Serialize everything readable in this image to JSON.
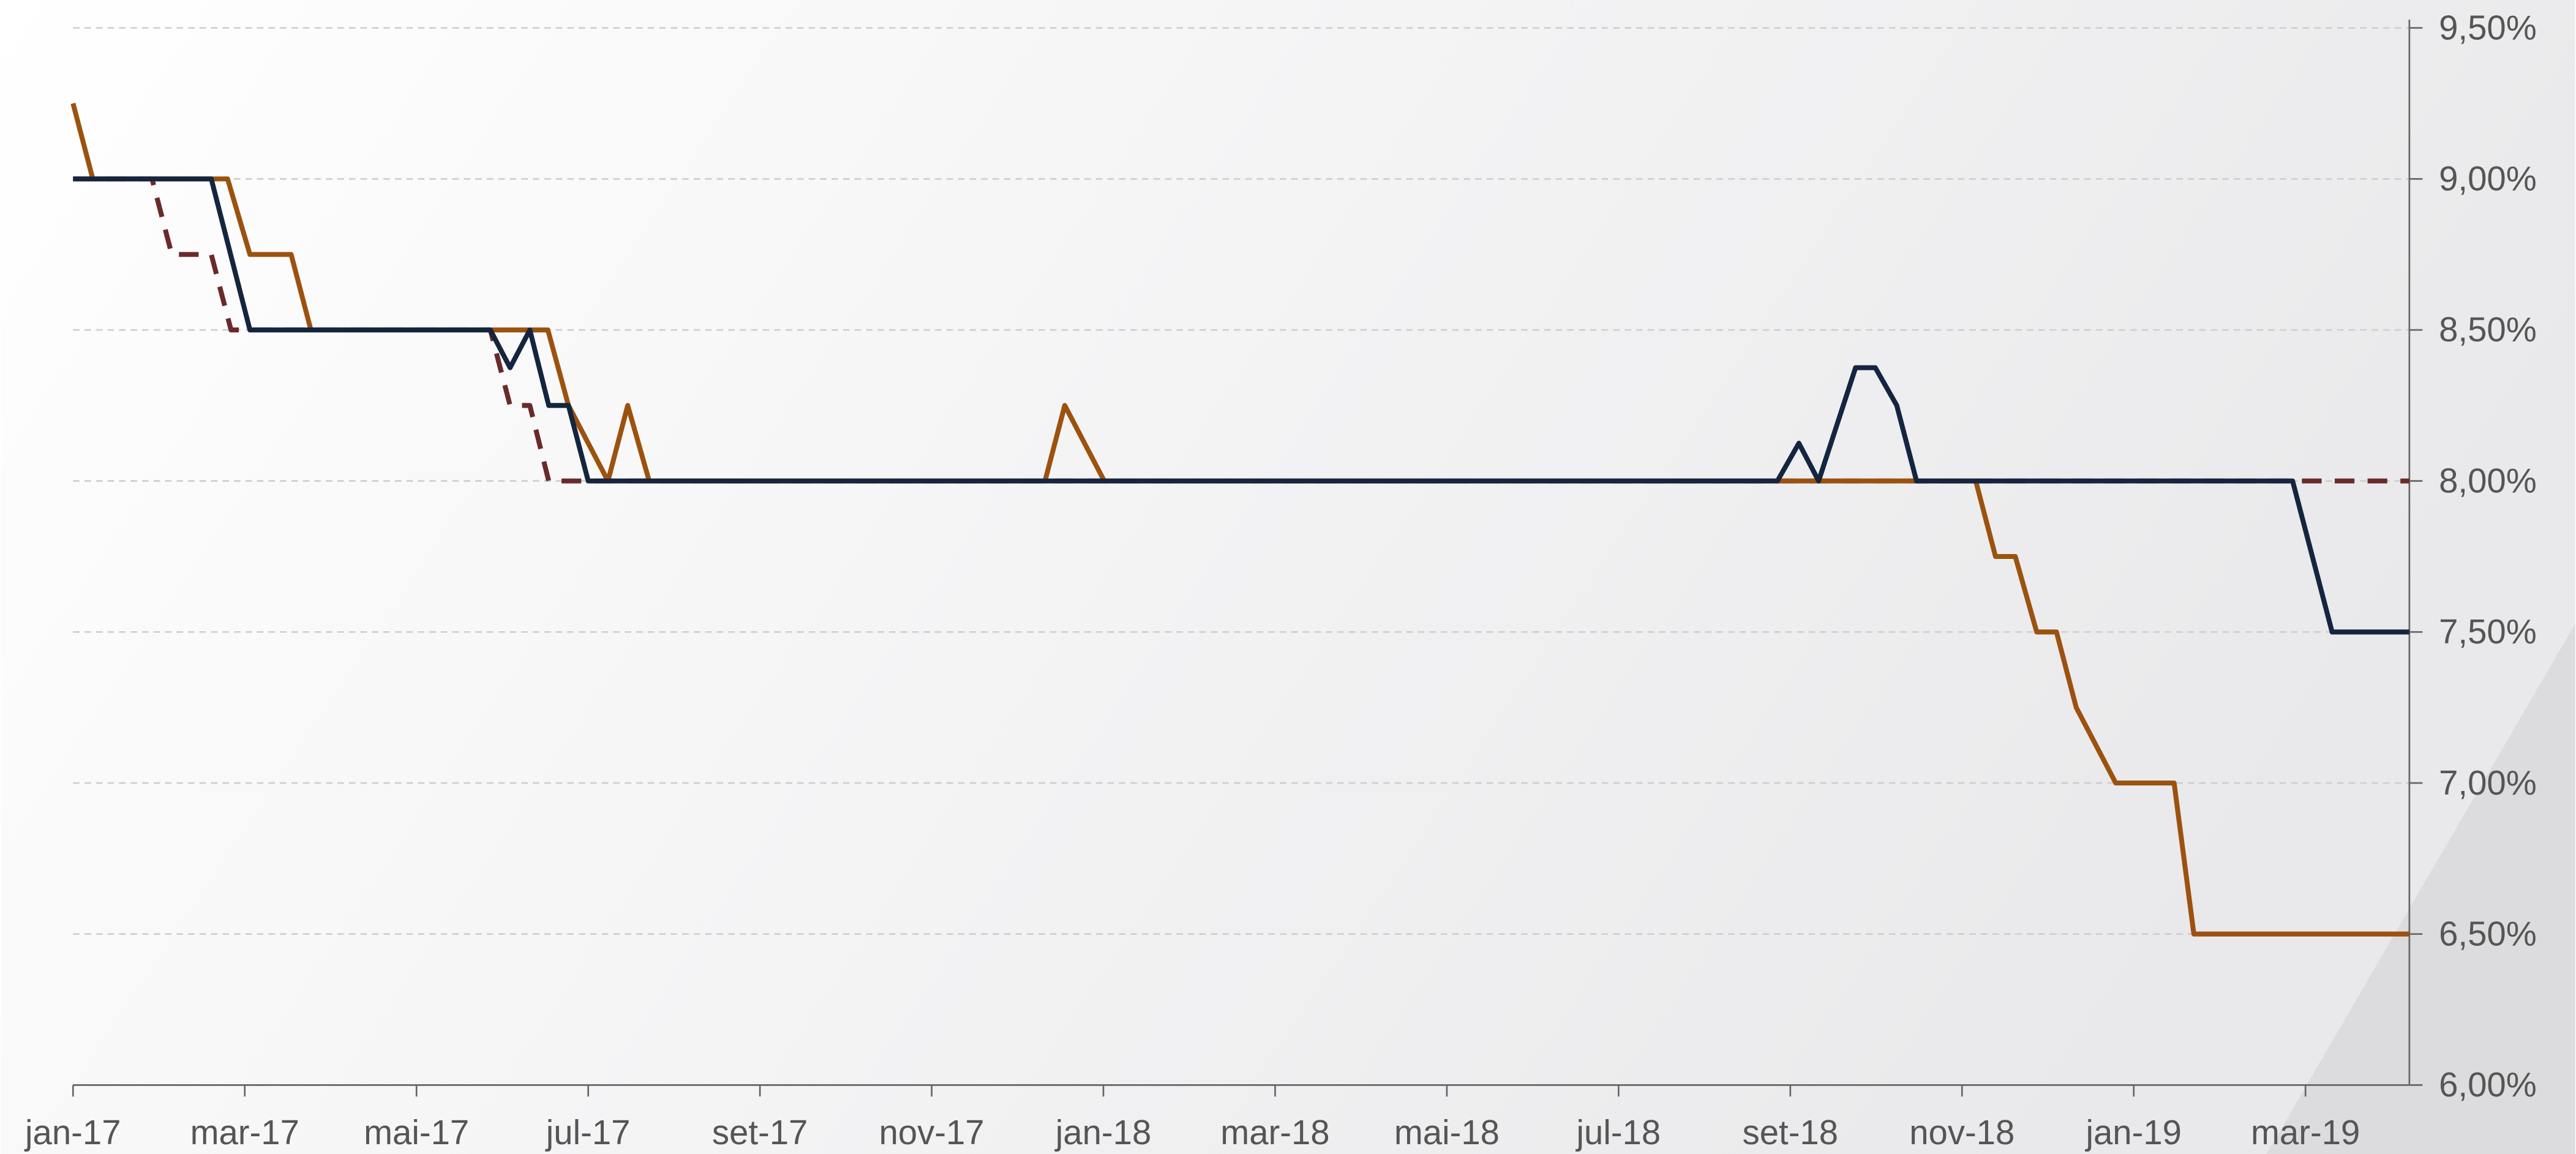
{
  "chart_data": {
    "type": "line",
    "xlim": [
      0,
      27.21
    ],
    "xticks": [
      {
        "value": 0,
        "label": "jan-17"
      },
      {
        "value": 2,
        "label": "mar-17"
      },
      {
        "value": 4,
        "label": "mai-17"
      },
      {
        "value": 6,
        "label": "jul-17"
      },
      {
        "value": 8,
        "label": "set-17"
      },
      {
        "value": 10,
        "label": "nov-17"
      },
      {
        "value": 12,
        "label": "jan-18"
      },
      {
        "value": 14,
        "label": "mar-18"
      },
      {
        "value": 16,
        "label": "mai-18"
      },
      {
        "value": 18,
        "label": "jul-18"
      },
      {
        "value": 20,
        "label": "set-18"
      },
      {
        "value": 22,
        "label": "nov-18"
      },
      {
        "value": 24,
        "label": "jan-19"
      },
      {
        "value": 26,
        "label": "mar-19"
      }
    ],
    "ylim": [
      6,
      9.5
    ],
    "yticks": [
      {
        "value": 6,
        "label": "6,00%"
      },
      {
        "value": 6.5,
        "label": "6,50%"
      },
      {
        "value": 7,
        "label": "7,00%"
      },
      {
        "value": 7.5,
        "label": "7,50%"
      },
      {
        "value": 8,
        "label": "8,00%"
      },
      {
        "value": 8.5,
        "label": "8,50%"
      },
      {
        "value": 9,
        "label": "9,00%"
      },
      {
        "value": 9.5,
        "label": "9,50%"
      }
    ],
    "grid": true,
    "series": [
      {
        "color": "#6b2a2a",
        "dashed": true,
        "x": [
          0,
          0.92,
          1.15,
          1.61,
          1.84,
          4.86,
          5.09,
          5.32,
          5.54,
          27.21
        ],
        "values": [
          9.0,
          9.0,
          8.75,
          8.75,
          8.5,
          8.5,
          8.25,
          8.25,
          8.0,
          8.0
        ]
      },
      {
        "color": "#9c520f",
        "x": [
          0,
          0.23,
          1.8,
          2.06,
          2.54,
          2.77,
          5.53,
          5.77,
          6.23,
          6.46,
          6.71,
          11.32,
          11.55,
          12.01,
          22.16,
          22.39,
          22.62,
          22.87,
          23.1,
          23.33,
          23.79,
          24.47,
          24.7,
          27.21
        ],
        "values": [
          9.25,
          9.0,
          9.0,
          8.75,
          8.75,
          8.5,
          8.5,
          8.25,
          8.0,
          8.25,
          8.0,
          8.0,
          8.25,
          8.0,
          8.0,
          7.75,
          7.75,
          7.5,
          7.5,
          7.25,
          7.0,
          7.0,
          6.5,
          6.5
        ]
      },
      {
        "color": "#14253f",
        "x": [
          0,
          1.61,
          2.06,
          4.86,
          5.09,
          5.32,
          5.54,
          5.77,
          6.0,
          19.85,
          20.1,
          20.33,
          20.76,
          20.99,
          21.24,
          21.47,
          25.85,
          26.31,
          27.21
        ],
        "values": [
          9.0,
          9.0,
          8.5,
          8.5,
          8.375,
          8.5,
          8.25,
          8.25,
          8.0,
          8.0,
          8.125,
          8.0,
          8.375,
          8.375,
          8.25,
          8.0,
          8.0,
          7.5,
          7.5
        ]
      }
    ]
  }
}
